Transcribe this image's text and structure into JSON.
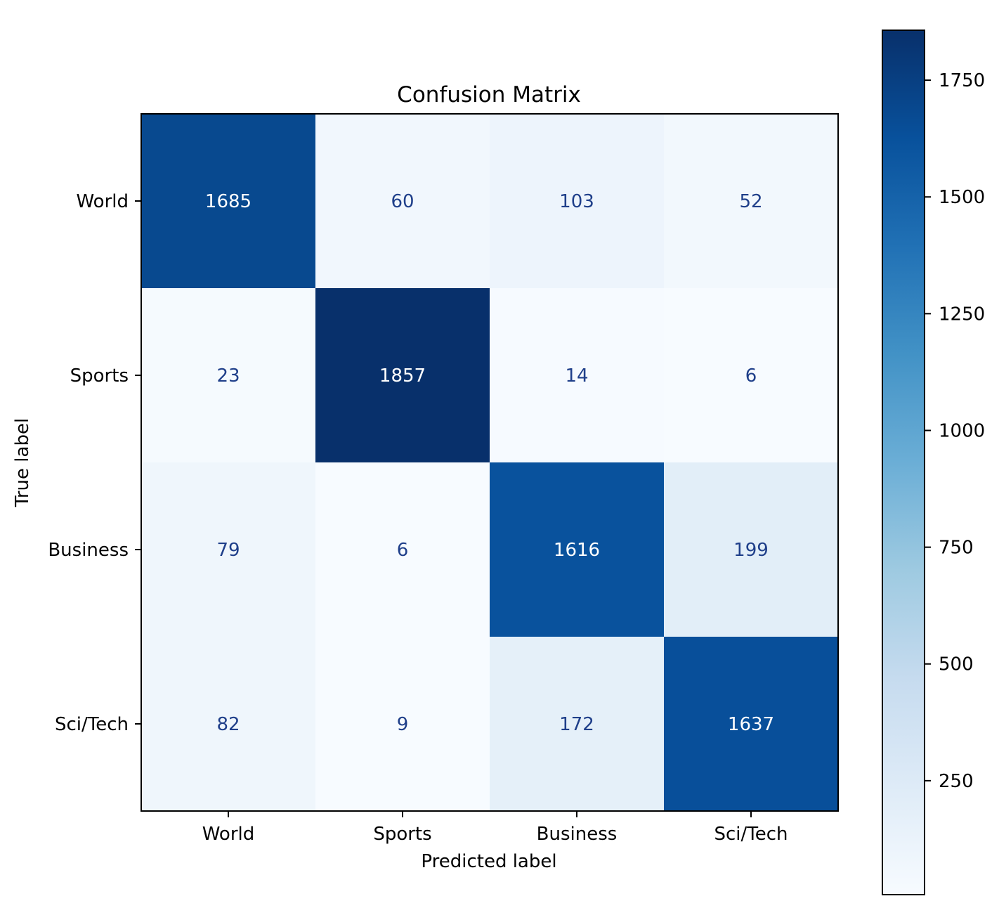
{
  "chart_data": {
    "type": "heatmap",
    "title": "Confusion Matrix",
    "xlabel": "Predicted label",
    "ylabel": "True label",
    "x_categories": [
      "World",
      "Sports",
      "Business",
      "Sci/Tech"
    ],
    "y_categories": [
      "World",
      "Sports",
      "Business",
      "Sci/Tech"
    ],
    "values": [
      [
        1685,
        60,
        103,
        52
      ],
      [
        23,
        1857,
        14,
        6
      ],
      [
        79,
        6,
        1616,
        199
      ],
      [
        82,
        9,
        172,
        1637
      ]
    ],
    "colorbar": {
      "min": 6,
      "max": 1857,
      "ticks": [
        250,
        500,
        750,
        1000,
        1250,
        1500,
        1750
      ],
      "tick_labels": [
        "250",
        "500",
        "750",
        "1000",
        "1250",
        "1500",
        "1750"
      ]
    },
    "colormap": "Blues",
    "light_text_color": "#ffffff",
    "dark_text_color": "#1f3f8a"
  }
}
